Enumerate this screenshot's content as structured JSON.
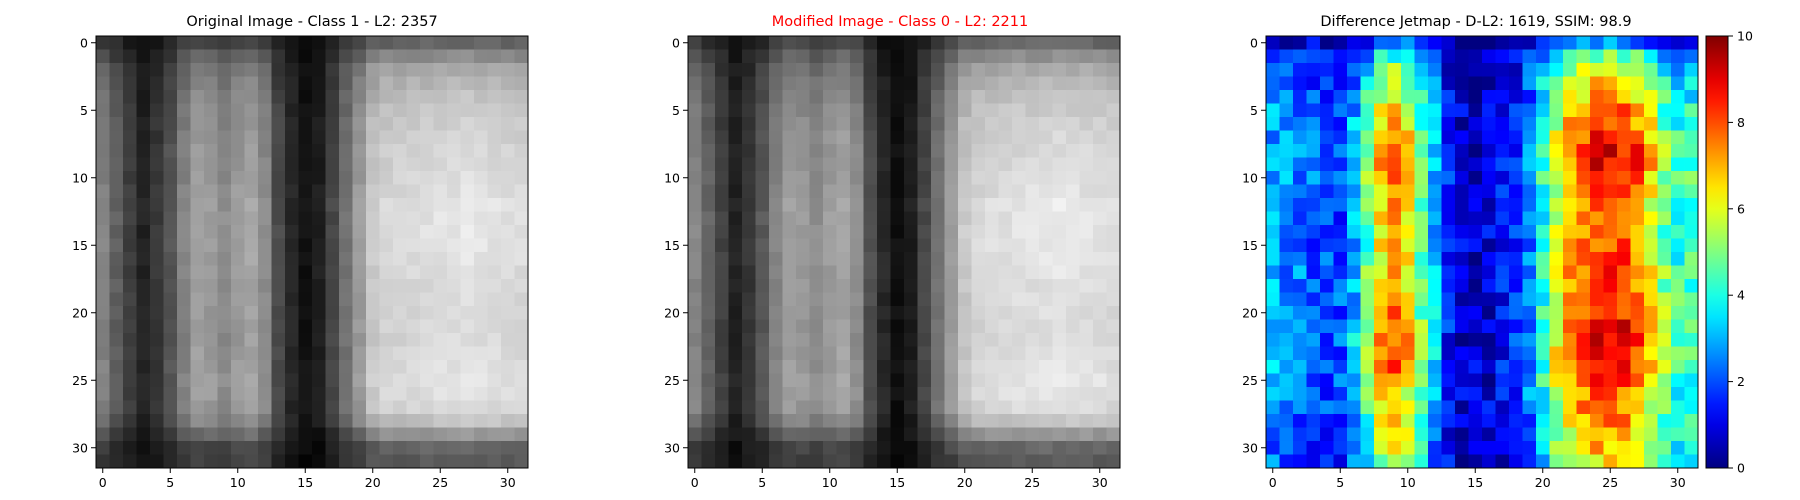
{
  "chart_data": [
    {
      "type": "heatmap",
      "title": "Original Image - Class 1 - L2: 2357",
      "title_color": "#000000",
      "colormap": "gray",
      "xlim": [
        -0.5,
        31.5
      ],
      "ylim": [
        31.5,
        -0.5
      ],
      "xticks": [
        "0",
        "5",
        "10",
        "15",
        "20",
        "25",
        "30"
      ],
      "yticks": [
        "0",
        "5",
        "10",
        "15",
        "20",
        "25",
        "30"
      ],
      "column_profile": [
        0.52,
        0.38,
        0.25,
        0.14,
        0.22,
        0.34,
        0.52,
        0.64,
        0.62,
        0.56,
        0.62,
        0.66,
        0.56,
        0.3,
        0.16,
        0.07,
        0.12,
        0.28,
        0.46,
        0.62,
        0.8,
        0.85,
        0.86,
        0.87,
        0.88,
        0.89,
        0.9,
        0.91,
        0.9,
        0.89,
        0.88,
        0.87
      ],
      "row_profile": [
        0.45,
        0.62,
        0.74,
        0.8,
        0.85,
        0.88,
        0.91,
        0.93,
        0.94,
        0.95,
        0.96,
        0.98,
        1.0,
        1.0,
        1.0,
        1.0,
        0.99,
        0.98,
        0.97,
        0.97,
        0.96,
        0.96,
        0.96,
        0.97,
        0.98,
        1.0,
        0.99,
        0.96,
        0.86,
        0.66,
        0.45,
        0.4
      ]
    },
    {
      "type": "heatmap",
      "title": "Modified Image - Class 0 - L2: 2211",
      "title_color": "#ff0000",
      "colormap": "gray",
      "xlim": [
        -0.5,
        31.5
      ],
      "ylim": [
        31.5,
        -0.5
      ],
      "xticks": [
        "0",
        "5",
        "10",
        "15",
        "20",
        "25",
        "30"
      ],
      "yticks": [
        "0",
        "5",
        "10",
        "15",
        "20",
        "25",
        "30"
      ],
      "column_profile": [
        0.54,
        0.4,
        0.26,
        0.14,
        0.22,
        0.35,
        0.52,
        0.63,
        0.61,
        0.56,
        0.62,
        0.66,
        0.57,
        0.31,
        0.16,
        0.06,
        0.12,
        0.28,
        0.46,
        0.63,
        0.8,
        0.85,
        0.87,
        0.88,
        0.89,
        0.9,
        0.91,
        0.92,
        0.91,
        0.9,
        0.89,
        0.88
      ],
      "row_profile": [
        0.45,
        0.62,
        0.74,
        0.8,
        0.85,
        0.88,
        0.91,
        0.93,
        0.94,
        0.95,
        0.96,
        0.98,
        1.0,
        1.0,
        1.0,
        1.0,
        0.99,
        0.98,
        0.97,
        0.97,
        0.96,
        0.96,
        0.96,
        0.97,
        0.98,
        1.0,
        0.99,
        0.96,
        0.86,
        0.66,
        0.45,
        0.4
      ]
    },
    {
      "type": "heatmap",
      "title": "Difference Jetmap - D-L2: 1619, SSIM: 98.9",
      "title_color": "#000000",
      "colormap": "jet",
      "xlim": [
        -0.5,
        31.5
      ],
      "ylim": [
        31.5,
        -0.5
      ],
      "xticks": [
        "0",
        "5",
        "10",
        "15",
        "20",
        "25",
        "30"
      ],
      "yticks": [
        "0",
        "5",
        "10",
        "15",
        "20",
        "25",
        "30"
      ],
      "colorbar": {
        "range": [
          0,
          10
        ],
        "ticks": [
          "0",
          "2",
          "4",
          "6",
          "8",
          "10"
        ]
      },
      "column_profile": [
        2.8,
        2.6,
        2.4,
        2.1,
        1.9,
        2.0,
        3.0,
        4.6,
        6.4,
        7.2,
        6.3,
        4.6,
        3.0,
        1.4,
        0.8,
        0.7,
        0.9,
        1.2,
        1.5,
        2.5,
        4.0,
        5.6,
        6.8,
        7.6,
        8.0,
        8.2,
        8.0,
        7.4,
        6.2,
        4.8,
        4.2,
        4.2
      ],
      "row_profile": [
        0.35,
        0.6,
        0.75,
        0.82,
        0.88,
        0.95,
        1.0,
        1.05,
        1.1,
        1.1,
        1.08,
        1.04,
        1.0,
        0.98,
        0.98,
        0.99,
        1.0,
        1.02,
        1.03,
        1.04,
        1.06,
        1.08,
        1.1,
        1.1,
        1.08,
        1.03,
        0.98,
        0.95,
        0.92,
        0.88,
        0.85,
        0.82
      ],
      "hotspots": [
        {
          "x": 27,
          "y": 8.5,
          "value": 9.8
        },
        {
          "x": 26,
          "y": 25,
          "value": 8.8
        },
        {
          "x": 24,
          "y": 21.5,
          "value": 8.6
        }
      ]
    }
  ]
}
